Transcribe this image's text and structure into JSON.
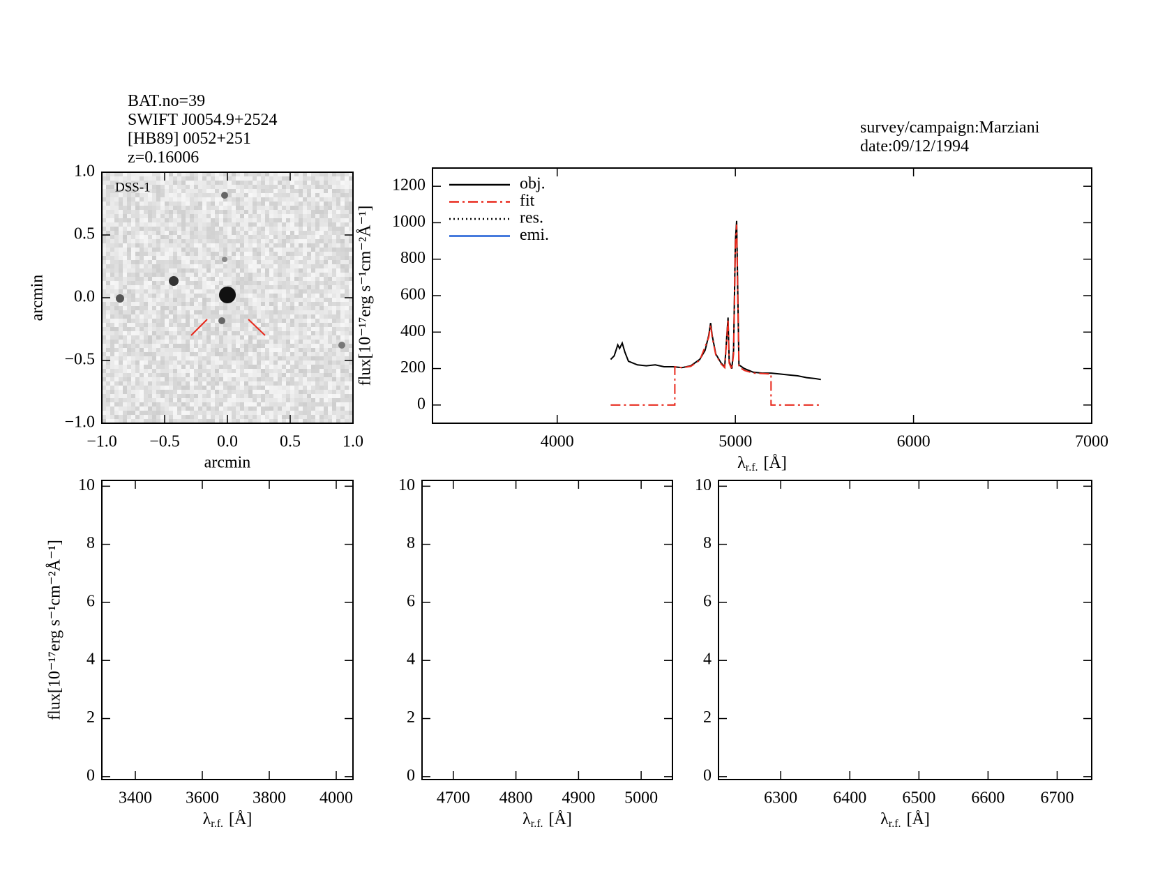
{
  "header": {
    "lines": [
      "BAT.no=39",
      "SWIFT J0054.9+2524",
      "[HB89] 0052+251",
      "z=0.16006"
    ],
    "survey": "survey/campaign:Marziani",
    "date": "date:09/12/1994"
  },
  "chart_data": [
    {
      "type": "image",
      "label": "DSS-1",
      "xlabel": "arcmin",
      "ylabel": "arcmin",
      "xlim": [
        -1,
        1
      ],
      "ylim": [
        -1,
        1
      ],
      "xticks": [
        {
          "value": -1,
          "label": "−1.0"
        },
        {
          "value": -0.5,
          "label": "−0.5"
        },
        {
          "value": 0,
          "label": "0.0"
        },
        {
          "value": 0.5,
          "label": "0.5"
        },
        {
          "value": 1,
          "label": "1.0"
        }
      ],
      "yticks": [
        {
          "value": -1,
          "label": "−1.0"
        },
        {
          "value": -0.5,
          "label": "−0.5"
        },
        {
          "value": 0,
          "label": "0.0"
        },
        {
          "value": 0.5,
          "label": "0.5"
        },
        {
          "value": 1,
          "label": "1.0"
        }
      ]
    },
    {
      "type": "line",
      "ylabel": "flux[10⁻¹⁷erg s⁻¹cm⁻²Å⁻¹]",
      "xlabel": {
        "symbol": "λ",
        "subscript": "r.f.",
        "unit": "[Å]"
      },
      "xlim": [
        3300,
        7000
      ],
      "ylim": [
        -100,
        1300
      ],
      "xticks": [
        4000,
        5000,
        6000,
        7000
      ],
      "yticks": [
        0,
        200,
        400,
        600,
        800,
        1000,
        1200
      ],
      "series": [
        {
          "name": "obj.",
          "color": "#000000",
          "dash": "solid",
          "x": [
            4300,
            4320,
            4340,
            4350,
            4365,
            4380,
            4400,
            4450,
            4500,
            4550,
            4600,
            4650,
            4700,
            4750,
            4800,
            4830,
            4850,
            4861,
            4870,
            4890,
            4920,
            4940,
            4959,
            4965,
            4980,
            4990,
            5000,
            5007,
            5012,
            5020,
            5050,
            5100,
            5150,
            5200,
            5250,
            5300,
            5350,
            5400,
            5450,
            5480
          ],
          "values": [
            250,
            270,
            330,
            310,
            340,
            290,
            240,
            220,
            215,
            220,
            210,
            210,
            205,
            215,
            250,
            300,
            380,
            450,
            380,
            280,
            230,
            210,
            480,
            240,
            200,
            300,
            900,
            1010,
            700,
            220,
            200,
            180,
            175,
            175,
            170,
            165,
            160,
            150,
            145,
            140
          ]
        },
        {
          "name": "fit",
          "color": "#e8291c",
          "dash": "dashdot",
          "x": [
            4300,
            4660,
            4660,
            4700,
            4750,
            4800,
            4850,
            4861,
            4870,
            4890,
            4920,
            4940,
            4959,
            4965,
            4980,
            4990,
            5000,
            5007,
            5012,
            5020,
            5050,
            5100,
            5200,
            5200,
            5480
          ],
          "values": [
            0,
            0,
            210,
            205,
            212,
            245,
            370,
            440,
            370,
            275,
            225,
            205,
            470,
            230,
            195,
            280,
            880,
            990,
            680,
            210,
            190,
            175,
            170,
            0,
            0
          ]
        },
        {
          "name": "res.",
          "color": "#000000",
          "dash": "dotted",
          "x": [],
          "values": []
        },
        {
          "name": "emi.",
          "color": "#1f5fd6",
          "dash": "solid",
          "x": [],
          "values": []
        }
      ]
    },
    {
      "type": "line",
      "ylabel": "flux[10⁻¹⁷erg s⁻¹cm⁻²Å⁻¹]",
      "xlabel": {
        "symbol": "λ",
        "subscript": "r.f.",
        "unit": "[Å]"
      },
      "xlim": [
        3300,
        4050
      ],
      "ylim": [
        -0.1,
        10.2
      ],
      "xticks": [
        3400,
        3600,
        3800,
        4000
      ],
      "yticks": [
        0,
        2,
        4,
        6,
        8,
        10
      ],
      "series": []
    },
    {
      "type": "line",
      "xlabel": {
        "symbol": "λ",
        "subscript": "r.f.",
        "unit": "[Å]"
      },
      "xlim": [
        4650,
        5050
      ],
      "ylim": [
        -0.1,
        10.2
      ],
      "xticks": [
        4700,
        4800,
        4900,
        5000
      ],
      "yticks": [
        0,
        2,
        4,
        6,
        8,
        10
      ],
      "series": []
    },
    {
      "type": "line",
      "xlabel": {
        "symbol": "λ",
        "subscript": "r.f.",
        "unit": "[Å]"
      },
      "xlim": [
        6210,
        6750
      ],
      "ylim": [
        -0.1,
        10.2
      ],
      "xticks": [
        6300,
        6400,
        6500,
        6600,
        6700
      ],
      "yticks": [
        0,
        2,
        4,
        6,
        8,
        10
      ],
      "series": []
    }
  ]
}
